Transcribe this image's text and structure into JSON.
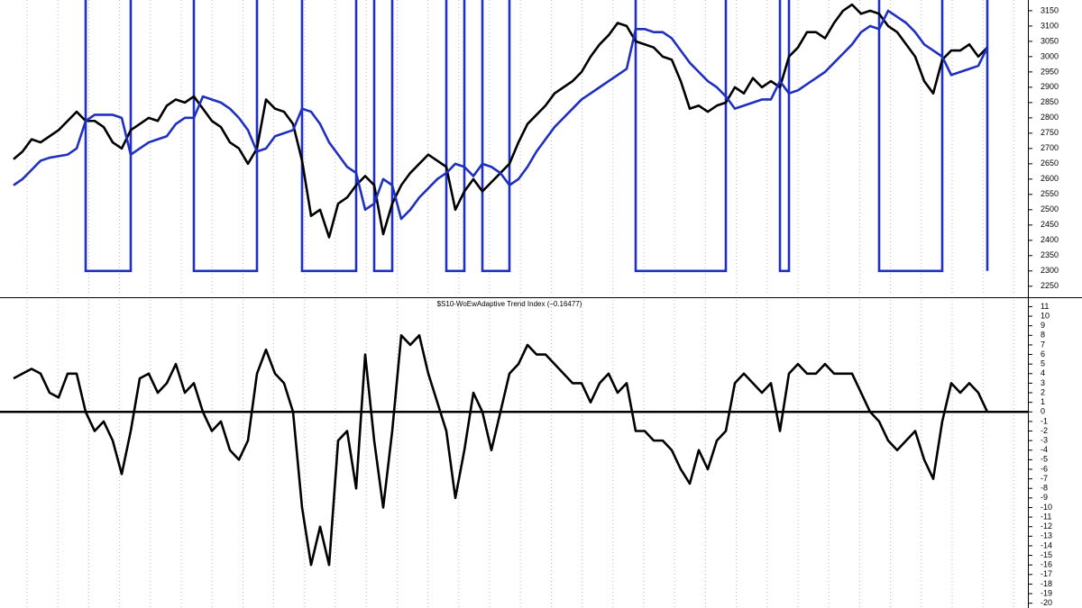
{
  "chart_data": [
    {
      "type": "line",
      "ylim": [
        2220,
        3185
      ],
      "yticks": [
        2250,
        2300,
        2350,
        2400,
        2450,
        2500,
        2550,
        2600,
        2650,
        2700,
        2750,
        2800,
        2850,
        2900,
        2950,
        3000,
        3050,
        3100,
        3150
      ],
      "xgrid": true,
      "series": [
        {
          "color": "#000000",
          "values": [
            2665,
            2690,
            2730,
            2720,
            2740,
            2760,
            2790,
            2820,
            2790,
            2790,
            2770,
            2720,
            2700,
            2760,
            2780,
            2800,
            2790,
            2840,
            2860,
            2850,
            2870,
            2830,
            2790,
            2770,
            2720,
            2700,
            2650,
            2700,
            2860,
            2830,
            2820,
            2780,
            2660,
            2480,
            2500,
            2410,
            2520,
            2540,
            2580,
            2610,
            2580,
            2420,
            2520,
            2580,
            2620,
            2650,
            2680,
            2660,
            2640,
            2500,
            2560,
            2600,
            2560,
            2590,
            2620,
            2650,
            2720,
            2780,
            2810,
            2840,
            2880,
            2900,
            2920,
            2950,
            3000,
            3040,
            3070,
            3110,
            3100,
            3050,
            3040,
            3030,
            3000,
            2990,
            2920,
            2830,
            2840,
            2820,
            2840,
            2850,
            2900,
            2880,
            2930,
            2900,
            2920,
            2900,
            3000,
            3030,
            3080,
            3080,
            3060,
            3110,
            3150,
            3170,
            3140,
            3150,
            3140,
            3100,
            3080,
            3040,
            3000,
            2920,
            2880,
            2990,
            3020,
            3020,
            3040,
            3000,
            3030
          ]
        },
        {
          "color": "#1f2fbf",
          "values": [
            2580,
            2600,
            2630,
            2660,
            2670,
            2675,
            2680,
            2700,
            2790,
            2810,
            2810,
            2810,
            2800,
            2680,
            2700,
            2720,
            2730,
            2740,
            2780,
            2800,
            2800,
            2870,
            2860,
            2850,
            2830,
            2800,
            2760,
            2690,
            2700,
            2740,
            2750,
            2760,
            2830,
            2820,
            2780,
            2720,
            2680,
            2640,
            2620,
            2500,
            2520,
            2600,
            2580,
            2470,
            2500,
            2540,
            2570,
            2600,
            2620,
            2650,
            2640,
            2610,
            2650,
            2640,
            2620,
            2580,
            2600,
            2640,
            2690,
            2730,
            2770,
            2800,
            2830,
            2860,
            2880,
            2900,
            2920,
            2940,
            2960,
            3090,
            3090,
            3080,
            3080,
            3060,
            3020,
            2980,
            2950,
            2920,
            2900,
            2870,
            2830,
            2840,
            2850,
            2860,
            2860,
            2920,
            2880,
            2890,
            2910,
            2930,
            2950,
            2980,
            3010,
            3040,
            3080,
            3100,
            3090,
            3150,
            3130,
            3110,
            3080,
            3040,
            3020,
            3000,
            2940,
            2950,
            2960,
            2970,
            3030
          ]
        }
      ],
      "signal": {
        "color": "#1f2fbf",
        "level": 2300,
        "periods": [
          [
            8,
            13
          ],
          [
            20,
            27
          ],
          [
            32,
            38
          ],
          [
            40,
            42
          ],
          [
            48,
            50
          ],
          [
            52,
            55
          ],
          [
            69,
            79
          ],
          [
            85,
            86
          ],
          [
            96,
            103
          ],
          [
            108,
            108
          ]
        ]
      }
    },
    {
      "type": "line",
      "title": "$S10-WoEwAdaptive Trend Index  (–0.16477)",
      "ylim": [
        -20.5,
        11.7
      ],
      "yticks": [
        11,
        10,
        9,
        8,
        7,
        6,
        5,
        4,
        3,
        2,
        1,
        0,
        -1,
        -2,
        -3,
        -4,
        -5,
        -6,
        -7,
        -8,
        -9,
        -10,
        -11,
        -12,
        -13,
        -14,
        -15,
        -16,
        -17,
        -18,
        -19,
        -20
      ],
      "xgrid": true,
      "hline": 0,
      "series": [
        {
          "color": "#000000",
          "values": [
            3.5,
            4,
            4.5,
            4,
            2,
            1.5,
            4,
            4,
            0,
            -2,
            -1,
            -3,
            -6.5,
            -2,
            3.5,
            4,
            2,
            3,
            5,
            2,
            3,
            0,
            -2,
            -1,
            -4,
            -5,
            -3,
            4,
            6.5,
            4,
            3,
            0,
            -10,
            -16,
            -12,
            -16,
            -3,
            -2,
            -8,
            6,
            -3,
            -10,
            -2,
            8,
            7,
            8,
            4,
            1,
            -2,
            -9,
            -4,
            2,
            0,
            -4,
            0,
            4,
            5,
            7,
            6,
            6,
            5,
            4,
            3,
            3,
            1,
            3,
            4,
            2,
            3,
            -2,
            -2,
            -3,
            -3,
            -4,
            -6,
            -7.5,
            -4,
            -6,
            -3,
            -2,
            3,
            4,
            3,
            2,
            3,
            -2,
            4,
            5,
            4,
            4,
            5,
            4,
            4,
            4,
            2,
            0,
            -1,
            -3,
            -4,
            -3,
            -2,
            -5,
            -7,
            -1,
            3,
            2,
            3,
            2,
            0
          ]
        }
      ]
    }
  ]
}
